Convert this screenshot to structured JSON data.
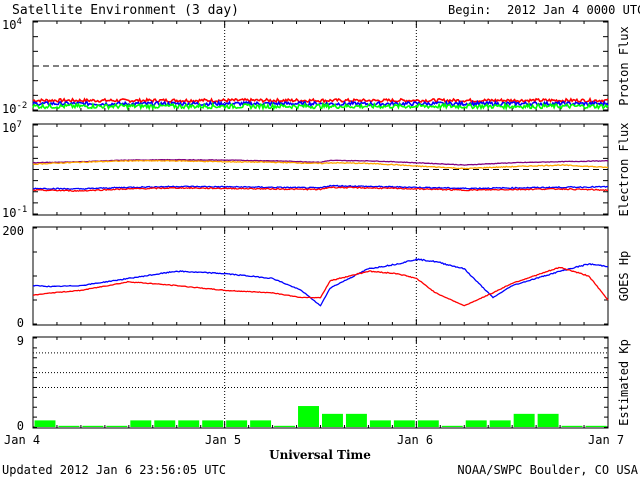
{
  "header": {
    "title": "Satellite Environment (3 day)",
    "begin_label": "Begin:",
    "begin_value": "2012 Jan 4 0000 UTC"
  },
  "footer": {
    "updated": "Updated 2012 Jan  6 23:56:05 UTC",
    "source": "NOAA/SWPC Boulder, CO USA"
  },
  "x_axis": {
    "label": "Universal Time",
    "ticks": [
      "Jan 4",
      "Jan 5",
      "Jan 6",
      "Jan 7"
    ]
  },
  "colors": {
    "red": "#ff0000",
    "blue": "#0000ff",
    "green": "#00ff00",
    "purple": "#800080",
    "orange": "#ffa500"
  },
  "chart_data": [
    {
      "type": "line",
      "panel": "proton",
      "ylabel": "Proton Flux",
      "scale": "log",
      "ylim": [
        0.01,
        10000
      ],
      "tick_labels": [
        "10^4",
        "10^-2"
      ],
      "threshold": 10,
      "x_days": [
        0,
        0.25,
        0.5,
        0.75,
        1,
        1.25,
        1.5,
        1.75,
        2,
        2.25,
        2.5,
        2.75,
        3
      ],
      "series": [
        {
          "color": "#ff0000",
          "values": [
            0.045,
            0.045,
            0.044,
            0.045,
            0.045,
            0.045,
            0.045,
            0.044,
            0.045,
            0.045,
            0.045,
            0.045,
            0.045
          ],
          "noise": 0.22
        },
        {
          "color": "#0000ff",
          "values": [
            0.027,
            0.027,
            0.026,
            0.027,
            0.027,
            0.027,
            0.027,
            0.026,
            0.027,
            0.027,
            0.027,
            0.027,
            0.027
          ],
          "noise": 0.25
        },
        {
          "color": "#00ff00",
          "values": [
            0.018,
            0.018,
            0.018,
            0.018,
            0.018,
            0.018,
            0.018,
            0.018,
            0.018,
            0.018,
            0.018,
            0.018,
            0.018
          ],
          "noise": 0.3
        }
      ]
    },
    {
      "type": "line",
      "panel": "electron",
      "ylabel": "Electron Flux",
      "scale": "log",
      "ylim": [
        0.1,
        10000000
      ],
      "tick_labels": [
        "10^7",
        "10^-1"
      ],
      "threshold": 1000,
      "x_days": [
        0,
        0.25,
        0.5,
        0.75,
        1,
        1.25,
        1.5,
        1.55,
        1.75,
        2,
        2.25,
        2.5,
        2.75,
        3
      ],
      "series": [
        {
          "color": "#800080",
          "values": [
            4000,
            5000,
            7000,
            7500,
            7000,
            6000,
            4500,
            6500,
            6000,
            4000,
            2500,
            4000,
            5000,
            6000
          ],
          "noise": 0.05
        },
        {
          "color": "#ffa500",
          "values": [
            3000,
            4500,
            6000,
            6000,
            5000,
            4500,
            3500,
            4000,
            3500,
            2000,
            1200,
            1800,
            2500,
            1500
          ],
          "noise": 0.08
        },
        {
          "color": "#0000ff",
          "values": [
            20,
            18,
            25,
            30,
            28,
            25,
            22,
            35,
            30,
            25,
            20,
            22,
            25,
            28
          ],
          "noise": 0.1
        },
        {
          "color": "#ff0000",
          "values": [
            14,
            12,
            18,
            22,
            20,
            18,
            16,
            25,
            22,
            18,
            14,
            16,
            18,
            14
          ],
          "noise": 0.1
        }
      ]
    },
    {
      "type": "line",
      "panel": "hp",
      "ylabel": "GOES Hp",
      "scale": "linear",
      "ylim": [
        0,
        200
      ],
      "tick_labels": [
        "200",
        "0"
      ],
      "x_days": [
        0,
        0.1,
        0.25,
        0.5,
        0.75,
        1,
        1.25,
        1.4,
        1.5,
        1.55,
        1.75,
        1.9,
        2,
        2.1,
        2.25,
        2.4,
        2.5,
        2.75,
        2.9,
        3
      ],
      "series": [
        {
          "color": "#0000ff",
          "values": [
            80,
            78,
            80,
            95,
            110,
            105,
            95,
            70,
            38,
            75,
            115,
            125,
            135,
            130,
            115,
            55,
            80,
            110,
            125,
            120
          ],
          "noise": 0.02
        },
        {
          "color": "#ff0000",
          "values": [
            60,
            65,
            70,
            88,
            80,
            70,
            65,
            55,
            55,
            90,
            110,
            105,
            95,
            65,
            38,
            65,
            85,
            118,
            100,
            50
          ],
          "noise": 0.02
        }
      ]
    },
    {
      "type": "bar",
      "panel": "kp",
      "ylabel": "Estimated Kp",
      "scale": "linear",
      "ylim": [
        0,
        9
      ],
      "tick_labels": [
        "9",
        "0"
      ],
      "dotted_levels": [
        4,
        5.5,
        7.5
      ],
      "bar_color": "#00ff00",
      "values": [
        0.67,
        0.12,
        0.12,
        0.12,
        0.67,
        0.67,
        0.67,
        0.67,
        0.67,
        0.67,
        0.12,
        2.12,
        1.33,
        1.33,
        0.67,
        0.67,
        0.67,
        0.12,
        0.67,
        0.67,
        1.33,
        1.33,
        0.12,
        0.12
      ]
    }
  ]
}
